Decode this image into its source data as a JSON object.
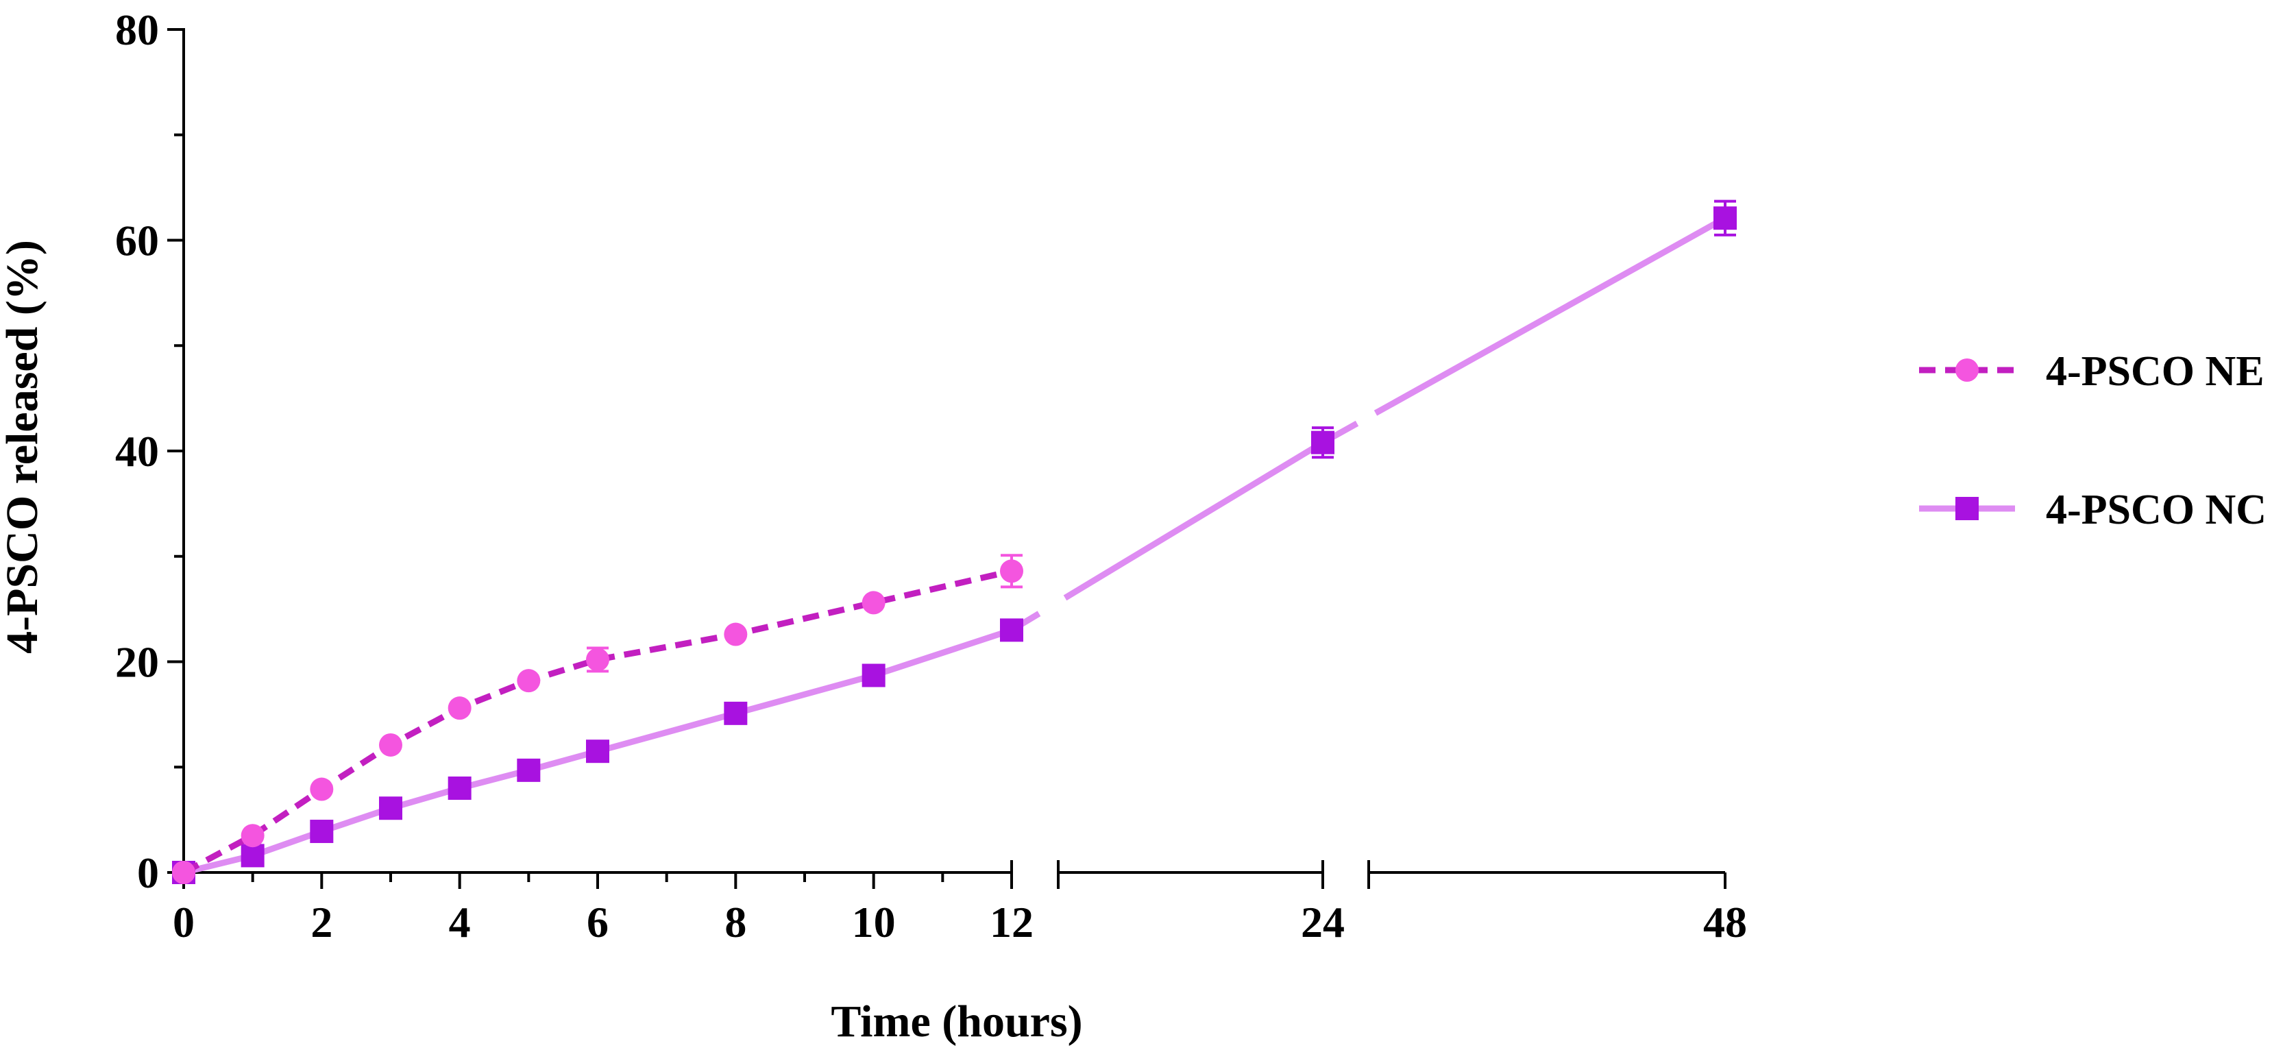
{
  "chart_data": {
    "type": "line",
    "title": "",
    "xlabel": "Time (hours)",
    "ylabel": "4-PSCO released (%)",
    "ylim": [
      0,
      80
    ],
    "yticks": [
      "0",
      "20",
      "40",
      "60",
      "80"
    ],
    "x_segments": [
      {
        "range": [
          0,
          12
        ],
        "ticks": [
          "0",
          "2",
          "4",
          "6",
          "8",
          "10",
          "12"
        ]
      },
      {
        "range": [
          12,
          24
        ],
        "ticks": [
          "24"
        ]
      },
      {
        "range": [
          24,
          48
        ],
        "ticks": [
          "48"
        ]
      }
    ],
    "grid": false,
    "legend_position": "right",
    "series": [
      {
        "name": "4-PSCO NE",
        "marker": "circle",
        "line_style": "dashed",
        "line_color": "#C21FC0",
        "marker_color": "#F455DF",
        "x": [
          0,
          1,
          2,
          3,
          4,
          5,
          6,
          8,
          10,
          12
        ],
        "y": [
          0,
          3.5,
          7.9,
          12.1,
          15.6,
          18.2,
          20.2,
          22.6,
          25.6,
          28.6
        ],
        "error": [
          0,
          0,
          0,
          0,
          0,
          0,
          1.1,
          0,
          0,
          1.5
        ]
      },
      {
        "name": "4-PSCO NC",
        "marker": "square",
        "line_style": "solid",
        "line_color": "#DE8CF2",
        "marker_color": "#A812E0",
        "x": [
          0,
          1,
          2,
          3,
          4,
          5,
          6,
          8,
          10,
          12,
          24,
          48
        ],
        "y": [
          0,
          1.6,
          3.9,
          6.1,
          8.0,
          9.7,
          11.5,
          15.1,
          18.7,
          23.0,
          40.8,
          62.1
        ],
        "error": [
          0,
          0,
          0,
          0,
          0,
          0,
          0,
          0,
          0,
          0,
          1.4,
          1.6
        ]
      }
    ]
  }
}
